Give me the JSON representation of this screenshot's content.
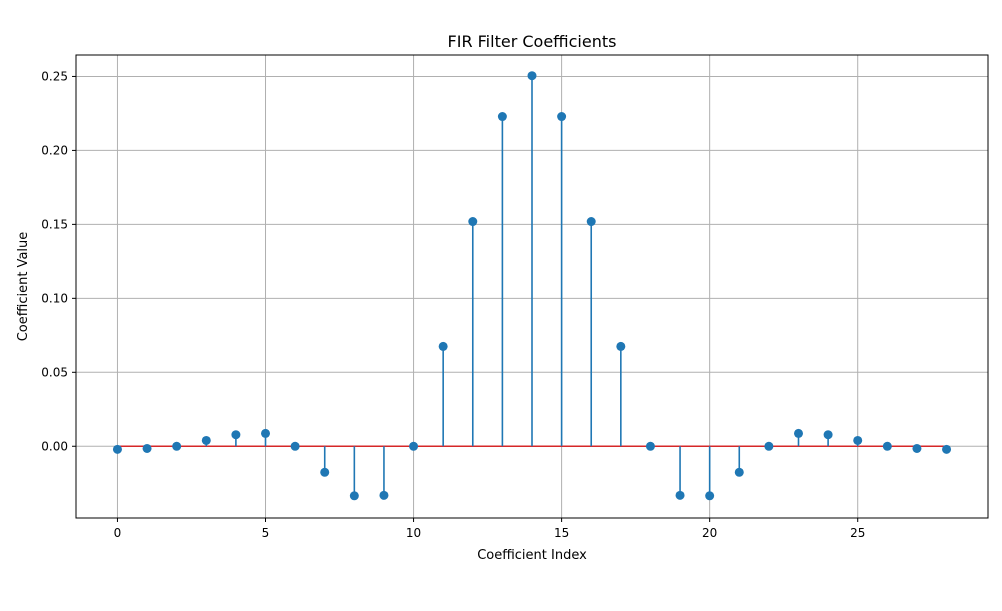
{
  "chart_data": {
    "type": "stem",
    "title": "FIR Filter Coefficients",
    "xlabel": "Coefficient Index",
    "ylabel": "Coefficient Value",
    "xlim": [
      -1.4,
      29.4
    ],
    "ylim": [
      -0.0485,
      0.2645
    ],
    "x_ticks": [
      0,
      5,
      10,
      15,
      20,
      25
    ],
    "x_tick_labels": [
      "0",
      "5",
      "10",
      "15",
      "20",
      "25"
    ],
    "y_ticks": [
      0.0,
      0.05,
      0.1,
      0.15,
      0.2,
      0.25
    ],
    "y_tick_labels": [
      "0.00",
      "0.05",
      "0.10",
      "0.15",
      "0.20",
      "0.25"
    ],
    "grid": true,
    "colors": {
      "stem": "#1f77b4",
      "marker": "#1f77b4",
      "baseline": "#d62728",
      "grid": "#b0b0b0",
      "axes": "#000000"
    },
    "x": [
      0,
      1,
      2,
      3,
      4,
      5,
      6,
      7,
      8,
      9,
      10,
      11,
      12,
      13,
      14,
      15,
      16,
      17,
      18,
      19,
      20,
      21,
      22,
      23,
      24,
      25,
      26,
      27,
      28
    ],
    "values": [
      -0.0021,
      -0.0015,
      0.0,
      0.0039,
      0.0078,
      0.0087,
      0.0,
      -0.0176,
      -0.0335,
      -0.0332,
      0.0,
      0.0675,
      0.1519,
      0.2229,
      0.2505,
      0.2229,
      0.1519,
      0.0675,
      0.0,
      -0.0332,
      -0.0335,
      -0.0176,
      0.0,
      0.0087,
      0.0078,
      0.0039,
      0.0,
      -0.0015,
      -0.0021
    ]
  }
}
